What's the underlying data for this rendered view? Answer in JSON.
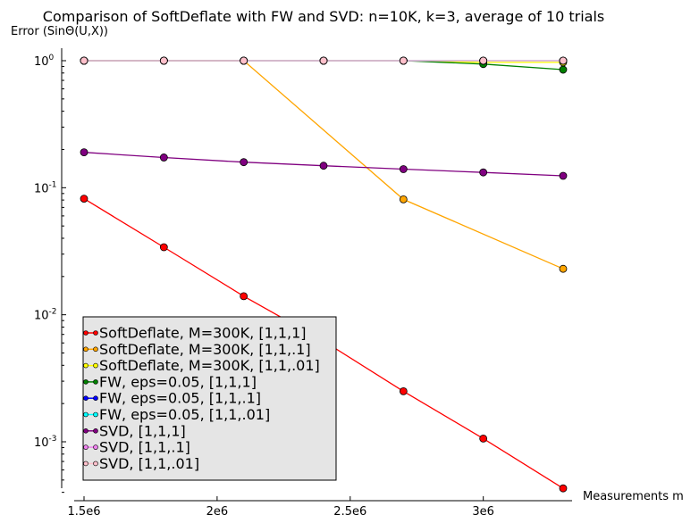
{
  "chart_data": {
    "type": "line",
    "title": "Comparison of SoftDeflate with FW and SVD: n=10K, k=3, average of 10 trials",
    "ylabel": "Error (SinΘ(U,X))",
    "xlabel": "Measurements m",
    "y_scale": "log",
    "ylim": [
      0.0004,
      1.3
    ],
    "xlim": [
      1.5,
      3.3
    ],
    "x_ticks": [
      {
        "value": 1.5,
        "label": "1.5e6"
      },
      {
        "value": 2.0,
        "label": "2e6"
      },
      {
        "value": 2.5,
        "label": "2.5e6"
      },
      {
        "value": 3.0,
        "label": "3e6"
      }
    ],
    "y_ticks": [
      {
        "value": 1,
        "base": "10",
        "exp": "0"
      },
      {
        "value": 0.1,
        "base": "10",
        "exp": "-1"
      },
      {
        "value": 0.01,
        "base": "10",
        "exp": "-2"
      },
      {
        "value": 0.001,
        "base": "10",
        "exp": "-3"
      }
    ],
    "legend_position": "lower-left",
    "grid": false,
    "x": [
      1.5,
      1.8,
      2.1,
      2.4,
      2.7,
      3.0,
      3.3
    ],
    "series": [
      {
        "name": "SoftDeflate, M=300K, [1,1,1]",
        "color": "#ff0000",
        "values": [
          0.082,
          0.034,
          0.014,
          0.0062,
          0.0025,
          0.00106,
          0.00043
        ]
      },
      {
        "name": "SoftDeflate, M=300K, [1,1,.1]",
        "color": "#ffa500",
        "values": [
          1.0,
          1.0,
          1.0,
          null,
          0.081,
          null,
          0.023
        ]
      },
      {
        "name": "SoftDeflate, M=300K, [1,1,.01]",
        "color": "#ffff00",
        "values": [
          1.0,
          1.0,
          1.0,
          1.0,
          1.0,
          0.97,
          0.97
        ]
      },
      {
        "name": "FW, eps=0.05, [1,1,1]",
        "color": "#008000",
        "values": [
          1.0,
          1.0,
          1.0,
          1.0,
          1.0,
          0.94,
          0.85
        ]
      },
      {
        "name": "FW, eps=0.05, [1,1,.1]",
        "color": "#0000ff",
        "values": [
          1.0,
          1.0,
          1.0,
          1.0,
          1.0,
          1.0,
          1.0
        ]
      },
      {
        "name": "FW, eps=0.05, [1,1,.01]",
        "color": "#00ffff",
        "values": [
          1.0,
          1.0,
          1.0,
          1.0,
          1.0,
          1.0,
          1.0
        ]
      },
      {
        "name": "SVD, [1,1,1]",
        "color": "#800080",
        "values": [
          0.19,
          0.173,
          0.159,
          0.149,
          0.14,
          0.132,
          0.124
        ]
      },
      {
        "name": "SVD, [1,1,.1]",
        "color": "#ee82ee",
        "values": [
          1.0,
          1.0,
          1.0,
          1.0,
          1.0,
          1.0,
          1.0
        ]
      },
      {
        "name": "SVD, [1,1,.01]",
        "color": "#ffc0cb",
        "values": [
          1.0,
          1.0,
          1.0,
          1.0,
          1.0,
          1.0,
          1.0
        ]
      }
    ]
  }
}
